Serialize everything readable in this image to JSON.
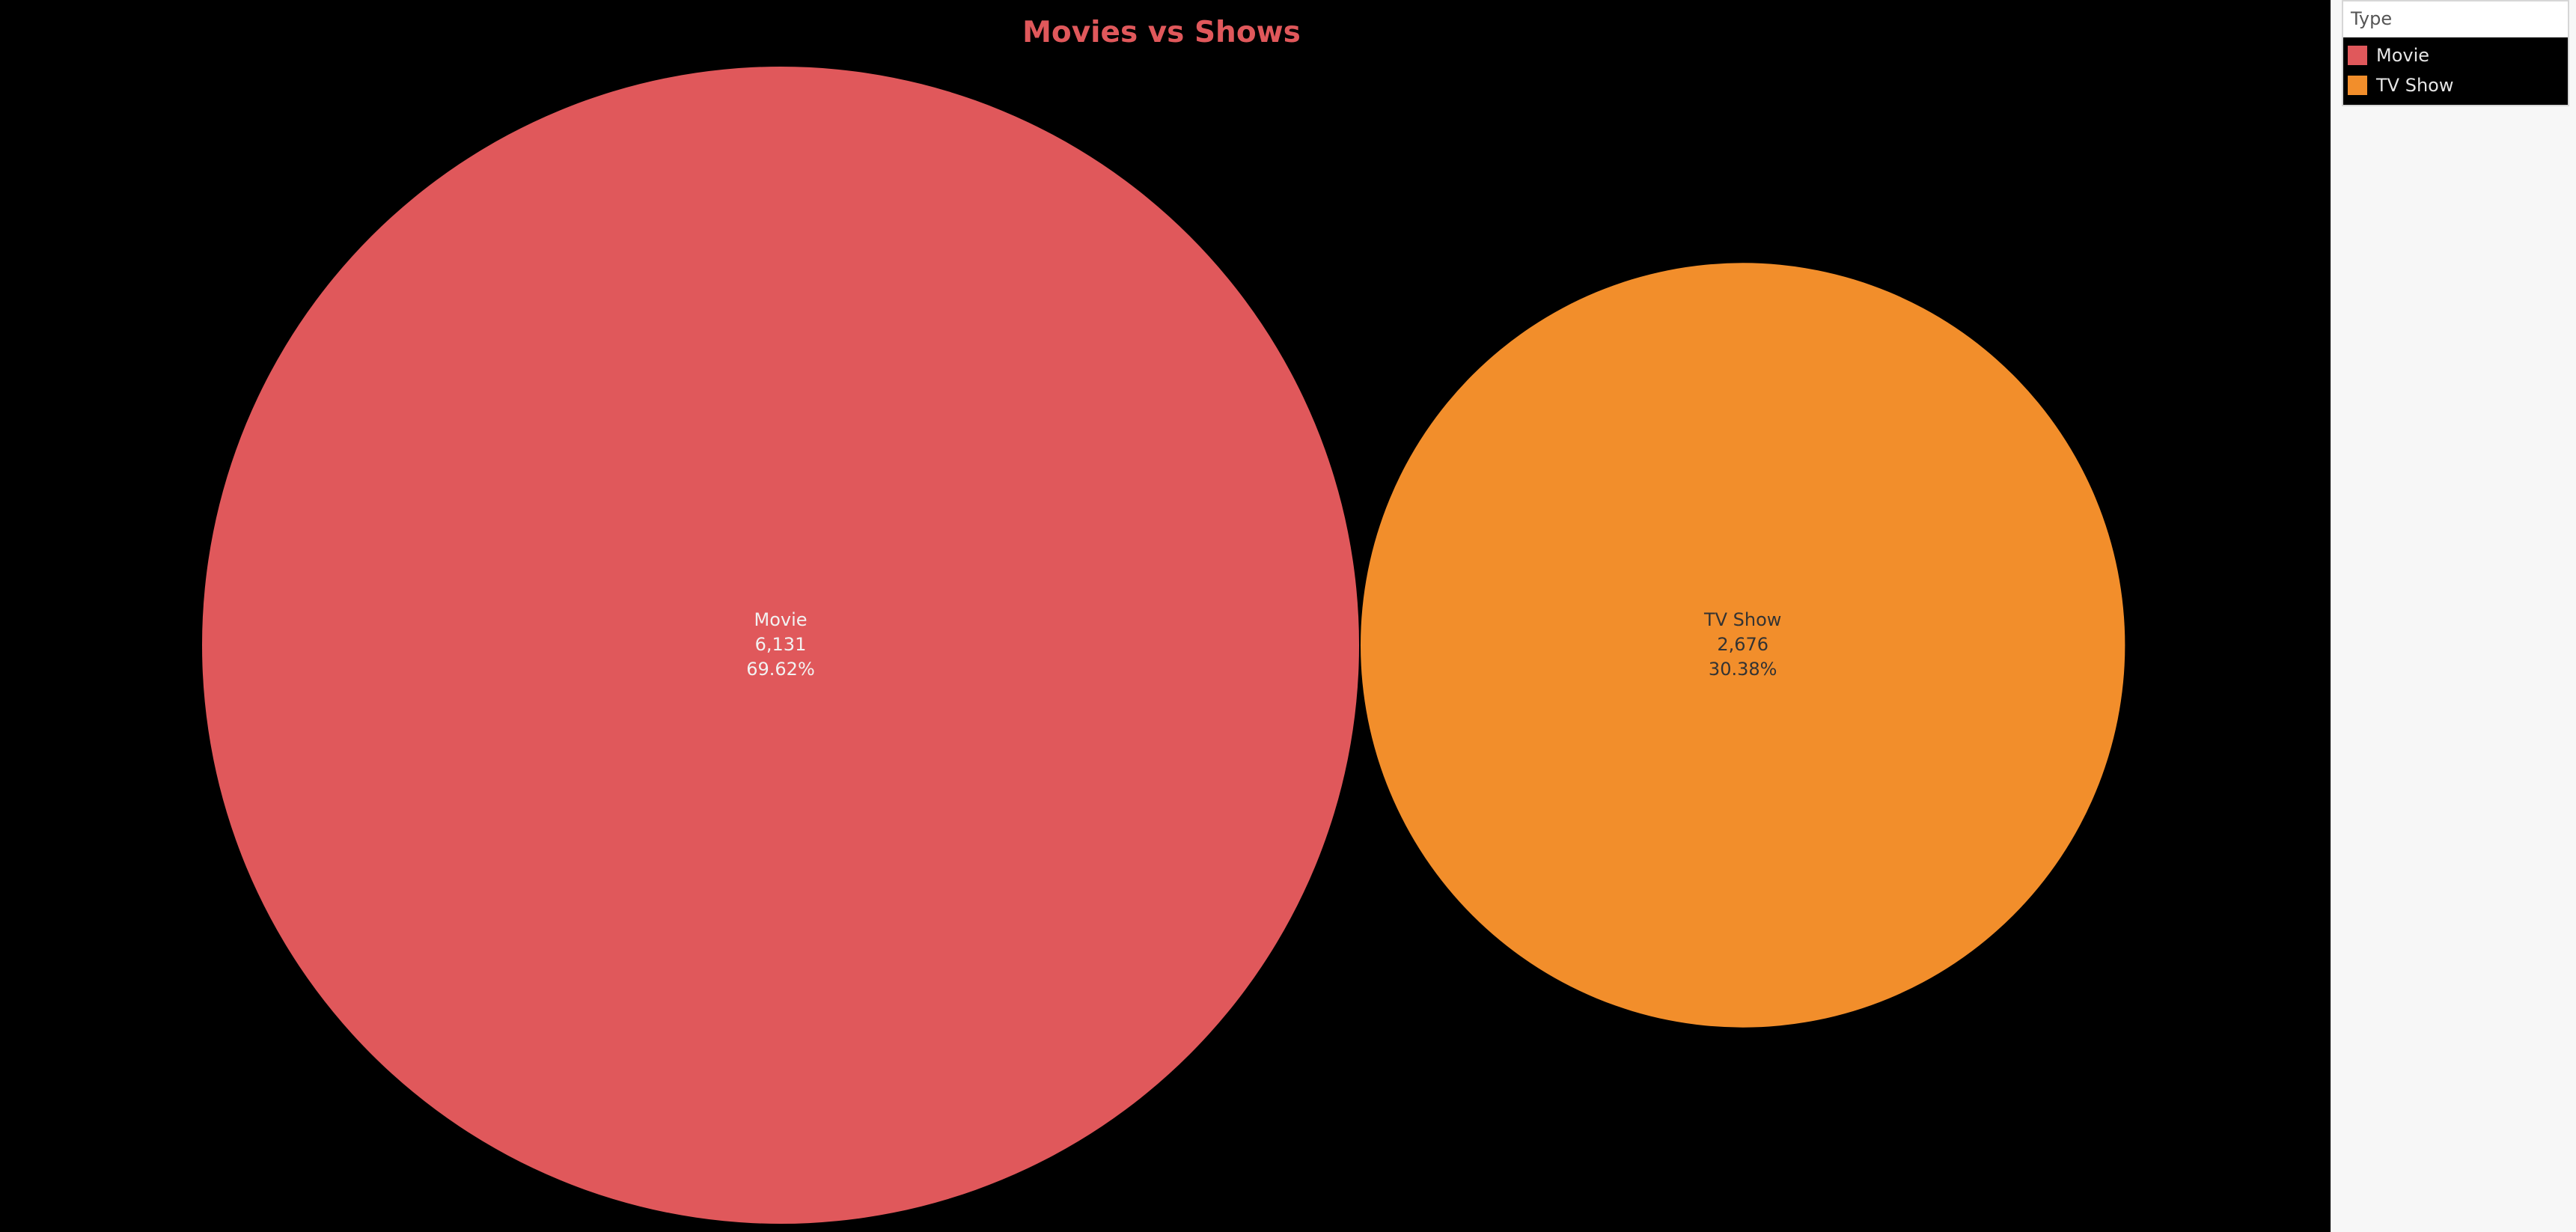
{
  "chart_data": {
    "type": "bubble",
    "title": "Movies vs Shows",
    "categories": [
      "Movie",
      "TV Show"
    ],
    "values": [
      6131,
      2676
    ],
    "value_labels": [
      "6,131",
      "2,676"
    ],
    "percent_labels": [
      "69.62%",
      "30.38%"
    ],
    "colors": [
      "#e0585b",
      "#f28e2b"
    ],
    "label_colors": [
      "#f2f2f2",
      "#333333"
    ],
    "legend": {
      "title": "Type",
      "placement": "right",
      "items": [
        "Movie",
        "TV Show"
      ]
    }
  },
  "theme": {
    "title_color": "#e0585b",
    "background": "#000000"
  }
}
